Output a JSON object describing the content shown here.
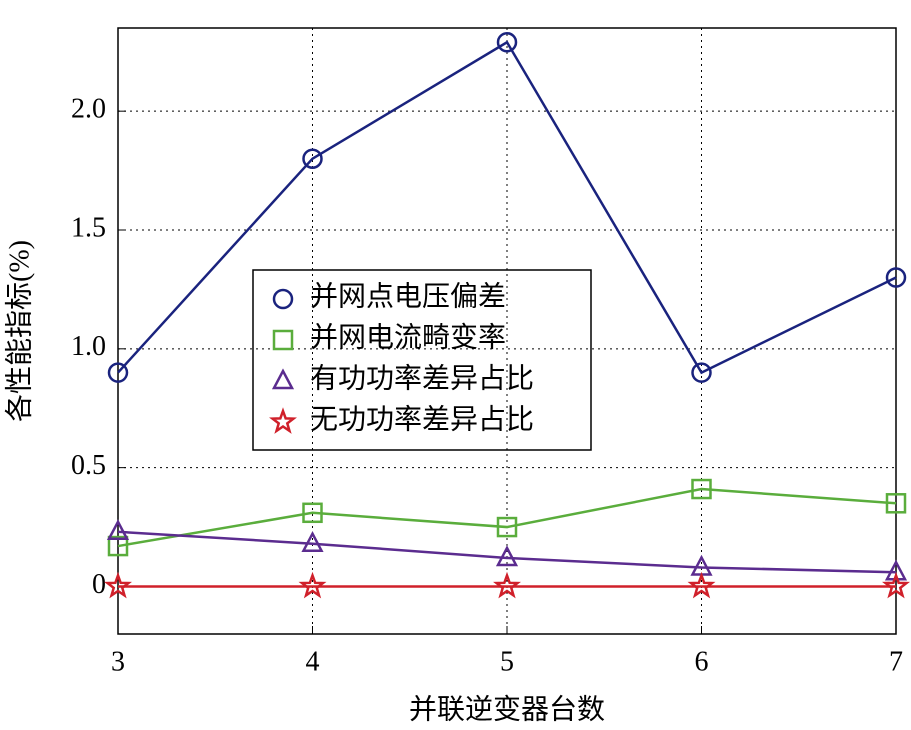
{
  "chart_data": {
    "type": "line",
    "x_label": "并联逆变器台数",
    "y_label": "各性能指标(%)",
    "x": [
      3,
      4,
      5,
      6,
      7
    ],
    "series": [
      {
        "name": "并网点电压偏差",
        "color": "#1a237e",
        "marker": "circle",
        "values": [
          0.9,
          1.8,
          2.29,
          0.9,
          1.3
        ]
      },
      {
        "name": "并网电流畸变率",
        "color": "#5aad3c",
        "marker": "square",
        "values": [
          0.17,
          0.31,
          0.25,
          0.41,
          0.35
        ]
      },
      {
        "name": "有功功率差异占比",
        "color": "#5b2c8f",
        "marker": "triangle",
        "values": [
          0.23,
          0.18,
          0.12,
          0.08,
          0.06
        ]
      },
      {
        "name": "无功功率差异占比",
        "color": "#d0202a",
        "marker": "star",
        "values": [
          0,
          0,
          0,
          0,
          0
        ]
      }
    ],
    "xlim": [
      3,
      7
    ],
    "xticks": [
      3,
      4,
      5,
      6,
      7
    ],
    "ylim": [
      -0.2,
      2.35
    ],
    "yticks": [
      0,
      0.5,
      {
        "value": 1.0,
        "label": "1.0"
      },
      1.5,
      {
        "value": 2.0,
        "label": "2.0"
      }
    ],
    "grid": true
  }
}
